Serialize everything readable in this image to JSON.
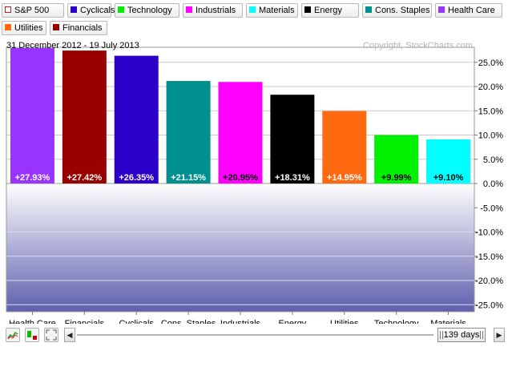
{
  "legend": [
    {
      "label": "S&P 500",
      "color": "#ffffff",
      "hollow": true
    },
    {
      "label": "Cyclicals",
      "color": "#2b00c8"
    },
    {
      "label": "Technology",
      "color": "#00f000"
    },
    {
      "label": "Industrials",
      "color": "#ff00ff"
    },
    {
      "label": "Materials",
      "color": "#00ffff"
    },
    {
      "label": "Energy",
      "color": "#000000"
    },
    {
      "label": "Cons. Staples",
      "color": "#009090"
    },
    {
      "label": "Health Care",
      "color": "#9933ff"
    },
    {
      "label": "Utilities",
      "color": "#ff6a10"
    },
    {
      "label": "Financials",
      "color": "#990000"
    }
  ],
  "chart_data": {
    "type": "bar",
    "title": "31 December 2012 - 19 July 2013",
    "watermark": "Copyright, StockCharts.com",
    "categories": [
      "Health Care",
      "Financials",
      "Cyclicals",
      "Cons. Staples",
      "Industrials",
      "Energy",
      "Utilities",
      "Technology",
      "Materials"
    ],
    "values": [
      27.93,
      27.42,
      26.35,
      21.15,
      20.95,
      18.31,
      14.95,
      9.99,
      9.1
    ],
    "value_labels": [
      "+27.93%",
      "+27.42%",
      "+26.35%",
      "+21.15%",
      "+20.95%",
      "+18.31%",
      "+14.95%",
      "+9.99%",
      "+9.10%"
    ],
    "colors": [
      "#9933ff",
      "#990000",
      "#2b00c8",
      "#009090",
      "#ff00ff",
      "#000000",
      "#ff6a10",
      "#00f000",
      "#00ffff"
    ],
    "label_colors": [
      "#ffffff",
      "#ffffff",
      "#ffffff",
      "#ffffff",
      "#000000",
      "#ffffff",
      "#ffffff",
      "#000000",
      "#000000"
    ],
    "y_ticks": [
      25,
      20,
      15,
      10,
      5,
      0,
      -5,
      -10,
      -15,
      -20,
      -25
    ],
    "y_tick_labels": [
      "25.0%",
      "20.0%",
      "15.0%",
      "10.0%",
      "5.0%",
      "0.0%",
      "-5.0%",
      "-10.0%",
      "-15.0%",
      "-20.0%",
      "-25.0%"
    ],
    "ylim": [
      -28,
      28
    ],
    "grid": true,
    "axis_position": "right"
  },
  "controls": {
    "range_label": "139 days",
    "scroll_left": "◀",
    "scroll_right": "▶"
  }
}
